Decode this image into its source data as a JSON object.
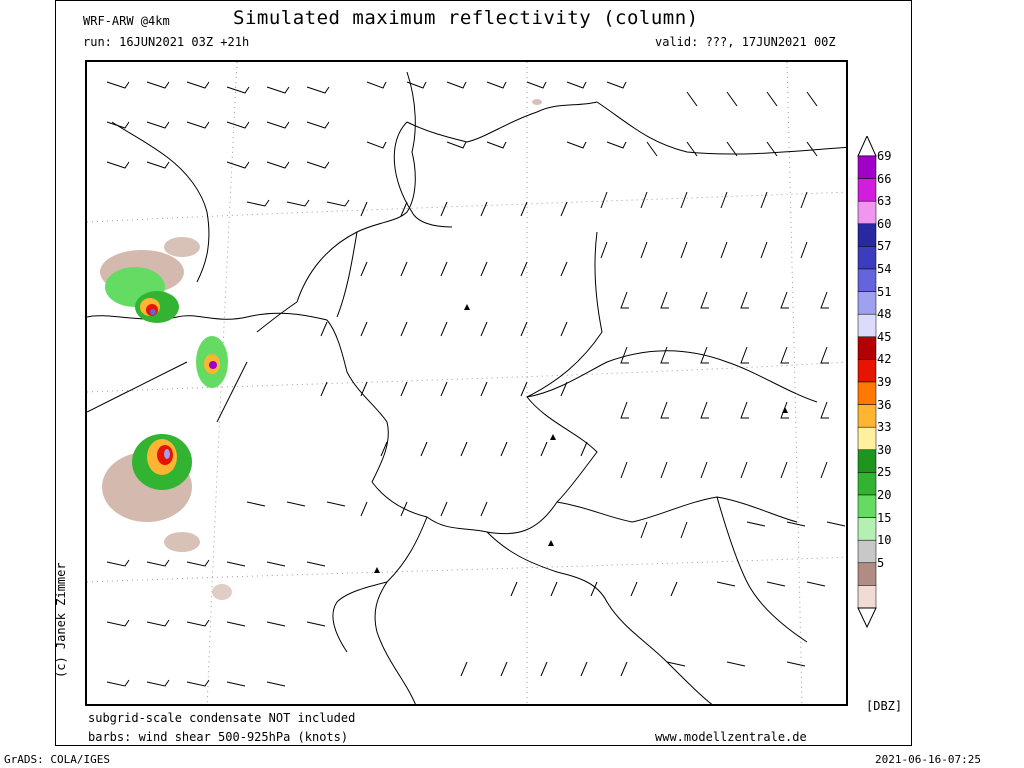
{
  "header": {
    "model": "WRF-ARW @4km",
    "title": "Simulated maximum reflectivity (column)",
    "run": "run: 16JUN2021 03Z +21h",
    "valid": "valid: ???, 17JUN2021 00Z"
  },
  "footer": {
    "note1": "subgrid-scale condensate NOT included",
    "note2": "barbs: wind shear 500-925hPa (knots)",
    "website": "www.modellzentrale.de",
    "grads": "GrADS: COLA/IGES",
    "timestamp": "2021-06-16-07:25"
  },
  "copyright": "(c) Janek Zimmer",
  "colorbar": {
    "unit": "[DBZ]",
    "levels": [
      {
        "label": "69",
        "color": "#a000c8"
      },
      {
        "label": "66",
        "color": "#d21edc"
      },
      {
        "label": "63",
        "color": "#f096f0"
      },
      {
        "label": "60",
        "color": "#2828a0"
      },
      {
        "label": "57",
        "color": "#3c3cbe"
      },
      {
        "label": "54",
        "color": "#6464dc"
      },
      {
        "label": "51",
        "color": "#a0a0f0"
      },
      {
        "label": "48",
        "color": "#dcdcfa"
      },
      {
        "label": "45",
        "color": "#b40000"
      },
      {
        "label": "42",
        "color": "#e61400"
      },
      {
        "label": "39",
        "color": "#ff7800"
      },
      {
        "label": "36",
        "color": "#ffb432"
      },
      {
        "label": "33",
        "color": "#fff0a0"
      },
      {
        "label": "30",
        "color": "#1e961e"
      },
      {
        "label": "25",
        "color": "#32b432"
      },
      {
        "label": "20",
        "color": "#64dc64"
      },
      {
        "label": "15",
        "color": "#b4f0b4"
      },
      {
        "label": "10",
        "color": "#c8c8c8"
      },
      {
        "label": "5",
        "color": "#b08c82"
      },
      {
        "label": "",
        "color": "#f0dcd4"
      }
    ]
  }
}
